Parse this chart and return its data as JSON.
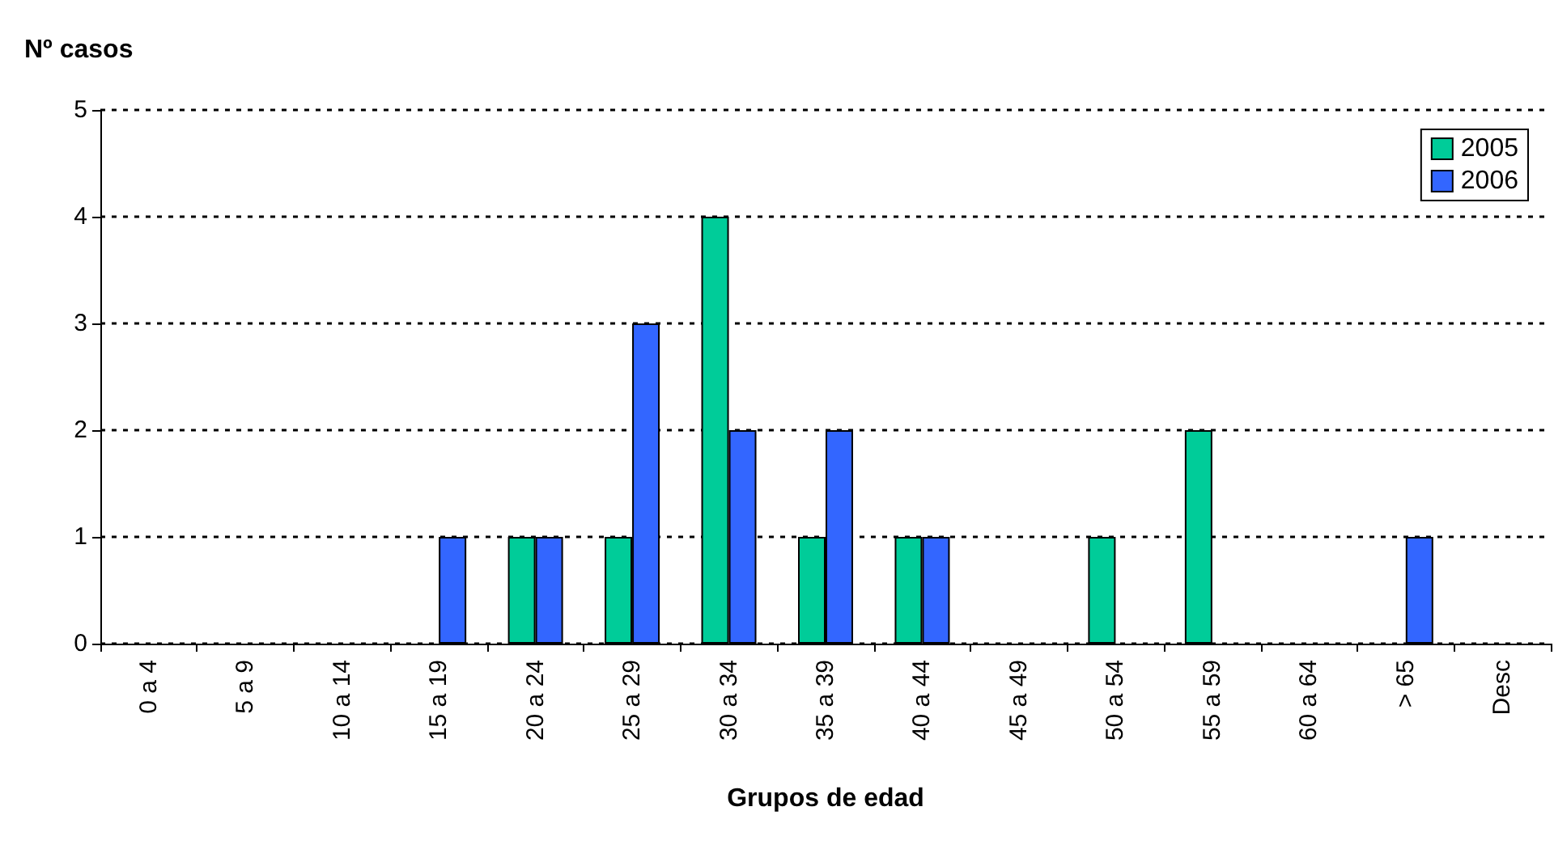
{
  "chart_data": {
    "type": "bar",
    "ylabel": "Nº casos",
    "xlabel": "Grupos de edad",
    "categories": [
      "0 a 4",
      "5 a 9",
      "10 a 14",
      "15 a 19",
      "20 a 24",
      "25 a 29",
      "30 a 34",
      "35 a 39",
      "40 a 44",
      "45 a 49",
      "50 a 54",
      "55 a 59",
      "60 a 64",
      "> 65",
      "Desc"
    ],
    "series": [
      {
        "name": "2005",
        "color": "#00cc99",
        "values": [
          0,
          0,
          0,
          0,
          1,
          1,
          4,
          1,
          1,
          0,
          1,
          2,
          0,
          0,
          0
        ]
      },
      {
        "name": "2006",
        "color": "#3366ff",
        "values": [
          0,
          0,
          0,
          1,
          1,
          3,
          2,
          2,
          1,
          0,
          0,
          0,
          0,
          1,
          0
        ]
      }
    ],
    "ylim": [
      0,
      5
    ],
    "yticks": [
      0,
      1,
      2,
      3,
      4,
      5
    ],
    "grid": "y",
    "legend": "top right"
  }
}
